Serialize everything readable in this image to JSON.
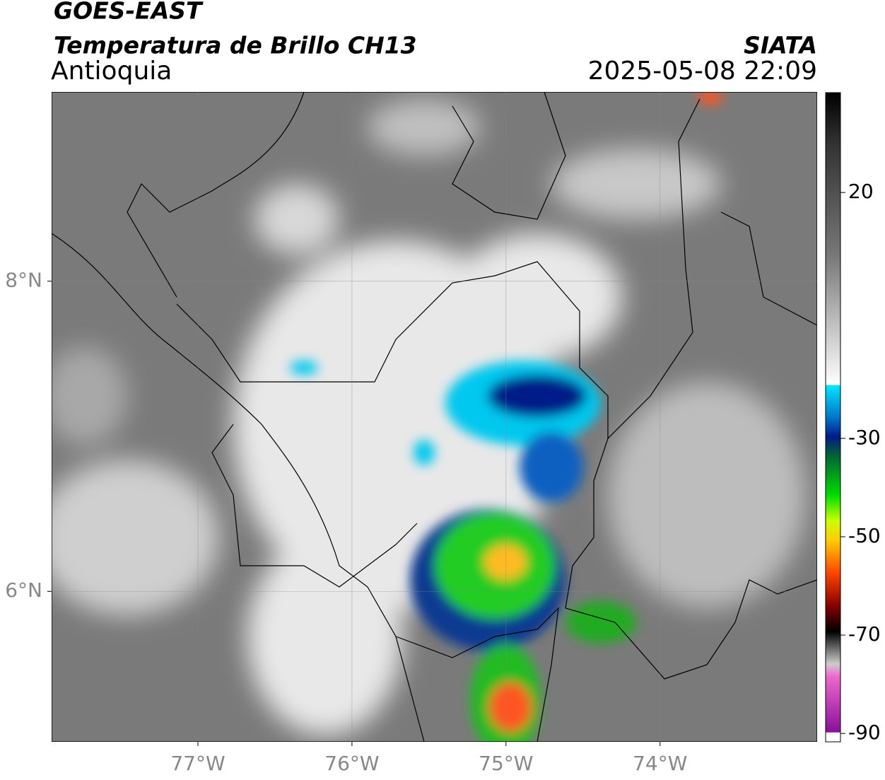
{
  "header": {
    "title": "GOES-EAST",
    "subtitle": "Temperatura de Brillo CH13",
    "region": "Antioquia",
    "source": "SIATA",
    "datetime": "2025-05-08 22:09"
  },
  "map": {
    "lonlim": [
      -77.95,
      -72.98
    ],
    "latlim": [
      5.03,
      9.22
    ],
    "lon_ticks": [
      {
        "value": -77,
        "label": "77°W"
      },
      {
        "value": -76,
        "label": "76°W"
      },
      {
        "value": -75,
        "label": "75°W"
      },
      {
        "value": -74,
        "label": "74°W"
      }
    ],
    "lat_ticks": [
      {
        "value": 8,
        "label": "8°N"
      },
      {
        "value": 6,
        "label": "6°N"
      }
    ]
  },
  "colorbar": {
    "lim": [
      -91.7,
      40.3
    ],
    "ticks": [
      20,
      -30,
      -50,
      -70,
      -90
    ]
  }
}
